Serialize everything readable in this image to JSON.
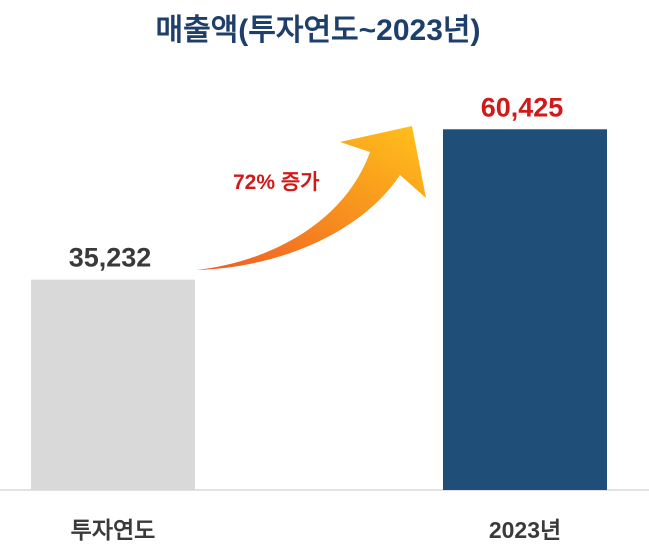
{
  "chart_data": {
    "type": "bar",
    "title": "매출액(투자연도~2023년)",
    "categories": [
      "투자연도",
      "2023년"
    ],
    "values": [
      35232,
      60425
    ],
    "value_labels": [
      "35,232",
      "60,425"
    ],
    "ylim": [
      0,
      66000
    ],
    "grid": false,
    "legend": "none",
    "annotation": "72% 증가",
    "colors": {
      "bars": [
        "#d9d9d9",
        "#1f4e79"
      ],
      "value_labels": [
        "#3a3a3a",
        "#d01a1a"
      ],
      "title": "#1f3f6b",
      "annotation": "#d01a1a",
      "arrow_start": "#ef5a24",
      "arrow_end": "#ffc21a",
      "axis": "#d9d9d9"
    }
  }
}
